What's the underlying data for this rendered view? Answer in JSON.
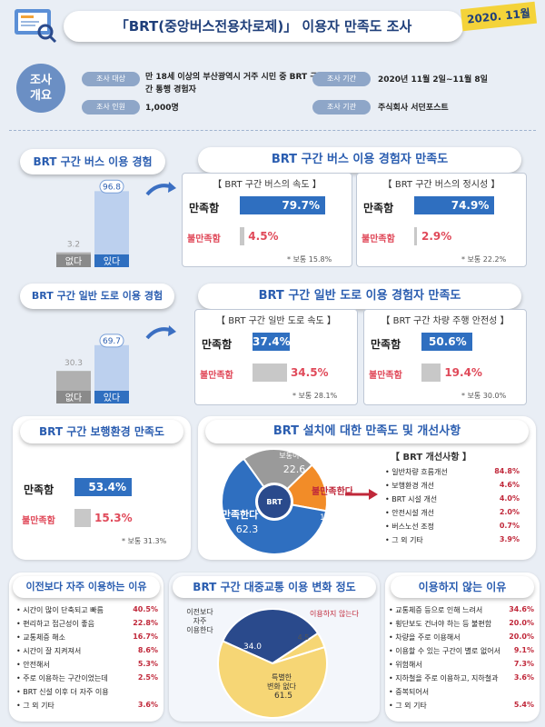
{
  "header": {
    "title": "「BRT(중앙버스전용차로제)」 이용자 만족도 조사",
    "date_badge": "2020. 11월"
  },
  "overview": {
    "label": "조사 개요",
    "target_label": "조사 대상",
    "target_value": "만 18세 이상의 부산광역시 거주 시민 중 BRT 구간 통행 경험자",
    "period_label": "조사 기간",
    "period_value": "2020년 11월 2일~11월 8일",
    "count_label": "조사 인원",
    "count_value": "1,000명",
    "org_label": "조사 기관",
    "org_value": "주식회사 서던포스트"
  },
  "bus_experience": {
    "title": "BRT 구간 버스 이용 경험",
    "no_label": "없다",
    "yes_label": "있다",
    "no_value": "3.2",
    "yes_value": "96.8"
  },
  "road_experience": {
    "title": "BRT 구간 일반 도로 이용 경험",
    "no_label": "없다",
    "yes_label": "있다",
    "no_value": "30.3",
    "yes_value": "69.7"
  },
  "bus_satisfaction": {
    "title": "BRT 구간 버스 이용 경험자 만족도",
    "speed": {
      "header": "【 BRT 구간 버스의 속도 】",
      "sat_label": "만족함",
      "sat_value": "79.7%",
      "dis_label": "불만족함",
      "dis_value": "4.5%",
      "neutral": "* 보통 15.8%"
    },
    "punctual": {
      "header": "【 BRT 구간 버스의 정시성 】",
      "sat_label": "만족함",
      "sat_value": "74.9%",
      "dis_label": "불만족함",
      "dis_value": "2.9%",
      "neutral": "* 보통 22.2%"
    }
  },
  "road_satisfaction": {
    "title": "BRT 구간 일반 도로 이용 경험자 만족도",
    "speed": {
      "header": "【 BRT 구간 일반 도로 속도 】",
      "sat_label": "만족함",
      "sat_value": "37.4%",
      "dis_label": "불만족함",
      "dis_value": "34.5%",
      "neutral": "* 보통 28.1%"
    },
    "safety": {
      "header": "【 BRT 구간 차량 주행 안전성 】",
      "sat_label": "만족함",
      "sat_value": "50.6%",
      "dis_label": "불만족함",
      "dis_value": "19.4%",
      "neutral": "* 보통 30.0%"
    }
  },
  "walk_satisfaction": {
    "title": "BRT 구간 보행환경 만족도",
    "sat_label": "만족함",
    "sat_value": "53.4%",
    "dis_label": "불만족함",
    "dis_value": "15.3%",
    "neutral": "* 보통 31.3%"
  },
  "install_satisfaction": {
    "title": "BRT 설치에 대한 만족도 및 개선사항",
    "center": "BRT",
    "normal_label": "보통이다",
    "normal_value": "22.6",
    "dis_label": "불만족한다",
    "dis_value": "15.1",
    "sat_label": "만족한다",
    "sat_value": "62.3",
    "improve_header": "【 BRT 개선사항 】",
    "improve": [
      {
        "item": "일반차량 흐름개선",
        "value": "84.8%"
      },
      {
        "item": "보행환경 개선",
        "value": "4.6%"
      },
      {
        "item": "BRT 시설 개선",
        "value": "4.0%"
      },
      {
        "item": "안전시설 개선",
        "value": "2.0%"
      },
      {
        "item": "버스노선 조정",
        "value": "0.7%"
      },
      {
        "item": "그 외 기타",
        "value": "3.9%"
      }
    ]
  },
  "reasons_more": {
    "title": "이전보다 자주 이용하는 이유",
    "items": [
      {
        "item": "시간이 많이 단축되고 빠름",
        "value": "40.5%"
      },
      {
        "item": "편리하고 접근성이 좋음",
        "value": "22.8%"
      },
      {
        "item": "교통체증 해소",
        "value": "16.7%"
      },
      {
        "item": "시간이 잘 지켜져서",
        "value": "8.6%"
      },
      {
        "item": "안전해서",
        "value": "5.3%"
      },
      {
        "item": "주로 이용하는 구간이었는데",
        "value": "2.5%"
      },
      {
        "item": "BRT 신설 이후 더 자주 이용",
        "value": ""
      },
      {
        "item": "그 외 기타",
        "value": "3.6%"
      }
    ]
  },
  "usage_change": {
    "title": "BRT 구간 대중교통 이용 변화 정도",
    "more_label": "이전보다 자주 이용한다",
    "less_label": "이용하지 않는다",
    "same_label": "특별한 변화 없다"
  },
  "reasons_not": {
    "title": "이용하지 않는 이유",
    "items": [
      {
        "item": "교통체증 등으로 인해 느려서",
        "value": "34.6%"
      },
      {
        "item": "횡단보도 건너야 하는 등 불편함",
        "value": "20.0%"
      },
      {
        "item": "차량을 주로 이용해서",
        "value": "20.0%"
      },
      {
        "item": "이용할 수 있는 구간이 별로 없어서",
        "value": "9.1%"
      },
      {
        "item": "위험해서",
        "value": "7.3%"
      },
      {
        "item": "지하철을 주로 이용하고, 지하철과",
        "value": "3.6%"
      },
      {
        "item": "중복되어서",
        "value": ""
      },
      {
        "item": "그 외 기타",
        "value": "5.4%"
      }
    ]
  },
  "colors": {
    "blue": "#2f6fc0",
    "red": "#e04a5a",
    "gray": "#c8c8c8",
    "orange": "#f28c28",
    "yellow": "#f6d675",
    "navy": "#2a4a8c"
  },
  "chart_data": [
    {
      "type": "bar",
      "title": "BRT 구간 버스 이용 경험",
      "categories": [
        "없다",
        "있다"
      ],
      "values": [
        3.2,
        96.8
      ]
    },
    {
      "type": "bar",
      "title": "BRT 구간 일반 도로 이용 경험",
      "categories": [
        "없다",
        "있다"
      ],
      "values": [
        30.3,
        69.7
      ]
    },
    {
      "type": "bar",
      "title": "BRT 구간 버스의 속도",
      "categories": [
        "만족함",
        "불만족함"
      ],
      "values": [
        79.7,
        4.5
      ]
    },
    {
      "type": "bar",
      "title": "BRT 구간 버스의 정시성",
      "categories": [
        "만족함",
        "불만족함"
      ],
      "values": [
        74.9,
        2.9
      ]
    },
    {
      "type": "bar",
      "title": "BRT 구간 일반 도로 속도",
      "categories": [
        "만족함",
        "불만족함"
      ],
      "values": [
        37.4,
        34.5
      ]
    },
    {
      "type": "bar",
      "title": "BRT 구간 차량 주행 안전성",
      "categories": [
        "만족함",
        "불만족함"
      ],
      "values": [
        50.6,
        19.4
      ]
    },
    {
      "type": "bar",
      "title": "BRT 구간 보행환경 만족도",
      "categories": [
        "만족함",
        "불만족함"
      ],
      "values": [
        53.4,
        15.3
      ]
    },
    {
      "type": "pie",
      "title": "BRT 설치에 대한 만족도",
      "categories": [
        "만족한다",
        "보통이다",
        "불만족한다"
      ],
      "values": [
        62.3,
        22.6,
        15.1
      ]
    },
    {
      "type": "pie",
      "title": "BRT 구간 대중교통 이용 변화 정도",
      "categories": [
        "이전보다 자주 이용한다",
        "이용하지 않는다",
        "특별한 변화 없다"
      ],
      "values": [
        34.0,
        4.5,
        61.5
      ]
    }
  ]
}
